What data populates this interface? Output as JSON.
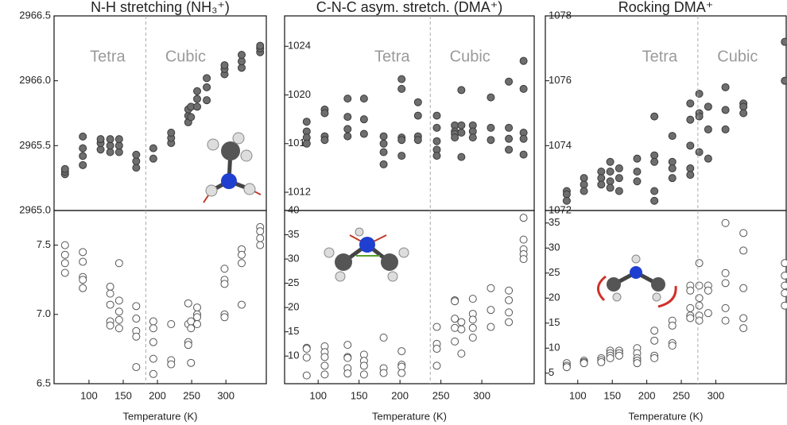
{
  "chart_data": [
    {
      "type": "scatter",
      "title": "N-H stretching (NH₃⁺)",
      "x_label": "Temperature (K)",
      "xlim": [
        49,
        359
      ],
      "xticks": [
        100,
        150,
        200,
        250,
        300
      ],
      "transition": 183,
      "phases": [
        "Tetra",
        "Cubic"
      ],
      "panels": [
        {
          "ylim": [
            2965.0,
            2966.5
          ],
          "yticks": [
            {
              "value": 2965,
              "label": "2965.0"
            },
            2965.5,
            {
              "value": 2966,
              "label": "2966.0"
            },
            2966.5
          ],
          "series": [
            {
              "color": "#6e6e6e",
              "marker": "filled",
              "x": [
                65,
                65,
                65,
                91,
                91,
                91,
                91,
                117,
                117,
                117,
                131,
                131,
                131,
                144,
                144,
                144,
                169,
                169,
                169,
                194,
                194,
                220,
                220,
                220,
                245,
                245,
                245,
                249,
                249,
                258,
                258,
                258,
                272,
                272,
                272,
                298,
                298,
                298,
                323,
                323,
                323,
                350,
                350,
                350
              ],
              "values": [
                2965.28,
                2965.3,
                2965.32,
                2965.35,
                2965.42,
                2965.48,
                2965.57,
                2965.47,
                2965.52,
                2965.55,
                2965.45,
                2965.5,
                2965.55,
                2965.45,
                2965.5,
                2965.55,
                2965.33,
                2965.38,
                2965.43,
                2965.4,
                2965.48,
                2965.52,
                2965.56,
                2965.6,
                2965.68,
                2965.73,
                2965.78,
                2965.72,
                2965.8,
                2965.8,
                2965.86,
                2965.92,
                2965.85,
                2965.95,
                2966.02,
                2966.05,
                2966.09,
                2966.12,
                2966.1,
                2966.15,
                2966.2,
                2966.22,
                2966.25,
                2966.27
              ]
            }
          ]
        },
        {
          "ylim": [
            6.5,
            7.75
          ],
          "yticks": [
            6.5,
            {
              "value": 7,
              "label": "7.0"
            },
            7.5
          ],
          "series": [
            {
              "color": "#555555",
              "marker": "open",
              "x": [
                65,
                65,
                65,
                65,
                91,
                91,
                91,
                91,
                91,
                131,
                131,
                131,
                131,
                131,
                144,
                144,
                144,
                144,
                144,
                169,
                169,
                169,
                169,
                169,
                194,
                194,
                194,
                194,
                194,
                220,
                220,
                220,
                245,
                245,
                245,
                245,
                249,
                249,
                249,
                258,
                258,
                258,
                258,
                298,
                298,
                298,
                298,
                298,
                323,
                323,
                323,
                323,
                350,
                350,
                350,
                350
              ],
              "values": [
                7.5,
                7.43,
                7.37,
                7.3,
                7.45,
                7.38,
                7.27,
                7.25,
                7.19,
                7.2,
                7.15,
                7.07,
                6.95,
                6.92,
                7.37,
                7.1,
                7.02,
                6.96,
                6.9,
                7.06,
                6.97,
                6.88,
                6.84,
                6.62,
                6.95,
                6.9,
                6.8,
                6.68,
                6.57,
                6.93,
                6.67,
                6.64,
                7.08,
                6.93,
                6.8,
                6.78,
                6.95,
                6.9,
                6.65,
                7.05,
                7.0,
                6.98,
                6.93,
                7.33,
                7.25,
                7.22,
                7.0,
                6.98,
                7.47,
                7.43,
                7.37,
                7.07,
                7.63,
                7.6,
                7.55,
                7.5
              ]
            }
          ]
        }
      ]
    },
    {
      "type": "scatter",
      "title": "C-N-C asym. stretch. (DMA⁺)",
      "x_label": "Temperature (K)",
      "xlim": [
        59,
        364
      ],
      "xticks": [
        100,
        150,
        200,
        250,
        300
      ],
      "transition": 237,
      "phases": [
        "Tetra",
        "Cubic"
      ],
      "panels": [
        {
          "ylim": [
            1010.5,
            1026.5
          ],
          "yticks": [
            1012,
            1016,
            1020,
            1024
          ],
          "series": [
            {
              "color": "#6e6e6e",
              "marker": "filled",
              "x": [
                86,
                86,
                86,
                86,
                108,
                108,
                108,
                108,
                136,
                136,
                136,
                136,
                156,
                156,
                156,
                180,
                180,
                180,
                180,
                202,
                202,
                202,
                202,
                202,
                222,
                222,
                222,
                222,
                245,
                245,
                245,
                245,
                245,
                267,
                267,
                267,
                267,
                275,
                275,
                275,
                275,
                289,
                289,
                289,
                311,
                311,
                311,
                333,
                333,
                333,
                333,
                351,
                351,
                351,
                351,
                351
              ],
              "values": [
                1017.8,
                1017,
                1016.5,
                1016,
                1018.8,
                1018.5,
                1016.6,
                1016.3,
                1019.7,
                1018.2,
                1017.2,
                1016.6,
                1019.7,
                1018,
                1016.8,
                1016.6,
                1016,
                1015.3,
                1014.3,
                1021.3,
                1020.5,
                1016.5,
                1016.3,
                1015,
                1019.4,
                1018.3,
                1016.6,
                1016.3,
                1018.3,
                1017.3,
                1016.2,
                1015.5,
                1015,
                1017.5,
                1017,
                1016.8,
                1016.5,
                1020.4,
                1017.5,
                1016.9,
                1014.9,
                1017.5,
                1017,
                1016.5,
                1019.8,
                1017.3,
                1016.3,
                1021.1,
                1017.3,
                1016.4,
                1015.5,
                1022.8,
                1020.5,
                1016.9,
                1016.4,
                1015.1
              ]
            }
          ]
        },
        {
          "ylim": [
            4.3,
            40
          ],
          "yticks": [
            10,
            15,
            20,
            25,
            30,
            35,
            40
          ],
          "series": [
            {
              "color": "#555555",
              "marker": "open",
              "x": [
                86,
                86,
                86,
                86,
                108,
                108,
                108,
                108,
                108,
                136,
                136,
                136,
                136,
                136,
                156,
                156,
                156,
                156,
                180,
                180,
                180,
                202,
                202,
                202,
                202,
                245,
                245,
                245,
                245,
                267,
                267,
                267,
                267,
                267,
                275,
                275,
                275,
                289,
                289,
                289,
                289,
                289,
                311,
                311,
                311,
                333,
                333,
                333,
                333,
                351,
                351,
                351,
                351,
                351
              ],
              "values": [
                11.7,
                11.5,
                9.7,
                6,
                12,
                10.8,
                9.8,
                8,
                6.2,
                12.3,
                9.8,
                9.6,
                7.5,
                6.4,
                10.3,
                9,
                8,
                6.2,
                13.8,
                7.5,
                6.5,
                11,
                8.2,
                7.8,
                6.5,
                16,
                12.5,
                11.5,
                8,
                21.5,
                21.3,
                17.7,
                15.8,
                13,
                17,
                15.5,
                10.5,
                21.8,
                18.7,
                17.5,
                15.8,
                13.8,
                24,
                19.5,
                16,
                23.5,
                21.5,
                19,
                17,
                38.5,
                34,
                32,
                31,
                30
              ]
            }
          ]
        }
      ]
    },
    {
      "type": "scatter",
      "title": "Rocking DMA⁺",
      "x_label": "Temperature (K)",
      "xlim": [
        53,
        402
      ],
      "xticks": [
        100,
        150,
        200,
        250,
        300
      ],
      "transition": 274,
      "phases": [
        "Tetra",
        "Cubic"
      ],
      "panels": [
        {
          "ylim": [
            1072,
            1078
          ],
          "yticks": [
            1072,
            1074,
            1076,
            1078
          ],
          "series": [
            {
              "color": "#6e6e6e",
              "marker": "filled",
              "x": [
                84,
                84,
                84,
                109,
                109,
                109,
                134,
                134,
                134,
                147,
                147,
                147,
                147,
                160,
                160,
                160,
                186,
                186,
                186,
                211,
                211,
                211,
                211,
                211,
                237,
                237,
                237,
                237,
                263,
                263,
                263,
                263,
                263,
                276,
                276,
                276,
                276,
                289,
                289,
                289,
                314,
                314,
                314,
                340,
                340,
                340,
                400,
                400
              ],
              "values": [
                1072.6,
                1072.5,
                1072.3,
                1073,
                1072.8,
                1072.6,
                1073.2,
                1073,
                1072.8,
                1073.5,
                1073.2,
                1072.9,
                1072.7,
                1073.3,
                1073,
                1072.6,
                1073.6,
                1073.2,
                1072.9,
                1074.9,
                1073.7,
                1073.5,
                1072.6,
                1072.3,
                1074.3,
                1073.5,
                1073.3,
                1073,
                1075.3,
                1074.8,
                1074,
                1073.3,
                1073.1,
                1075.6,
                1075,
                1074.9,
                1073.8,
                1075.2,
                1074.5,
                1073.6,
                1075.8,
                1075.1,
                1074.5,
                1075.3,
                1075.2,
                1075,
                1077.2,
                1076
              ]
            }
          ]
        },
        {
          "ylim": [
            2.9,
            37.5
          ],
          "yticks": [
            5,
            10,
            15,
            20,
            25,
            30,
            35
          ],
          "series": [
            {
              "color": "#555555",
              "marker": "open",
              "x": [
                84,
                84,
                84,
                109,
                109,
                109,
                134,
                134,
                134,
                147,
                147,
                147,
                147,
                160,
                160,
                160,
                186,
                186,
                186,
                186,
                186,
                211,
                211,
                211,
                211,
                237,
                237,
                237,
                237,
                263,
                263,
                263,
                263,
                263,
                276,
                276,
                276,
                276,
                276,
                276,
                289,
                289,
                289,
                314,
                314,
                314,
                314,
                314,
                340,
                340,
                340,
                340,
                340,
                400,
                400,
                400,
                400,
                400
              ],
              "values": [
                7,
                6.5,
                6.2,
                7.5,
                7.2,
                7,
                8,
                7.6,
                7.2,
                9.5,
                9,
                8.5,
                8,
                9.5,
                9,
                8.5,
                10,
                9,
                8,
                7.5,
                7,
                13.5,
                11.5,
                8.5,
                8,
                15.5,
                14.5,
                11,
                10.5,
                22.5,
                21.5,
                18,
                16.5,
                16,
                27,
                22.5,
                20,
                18.5,
                16.5,
                15.5,
                22.5,
                21.5,
                17,
                35,
                25,
                23,
                18,
                15.5,
                33,
                29.5,
                22,
                16,
                14,
                27,
                24.5,
                22.5,
                21,
                18.5
              ]
            }
          ]
        }
      ]
    }
  ]
}
